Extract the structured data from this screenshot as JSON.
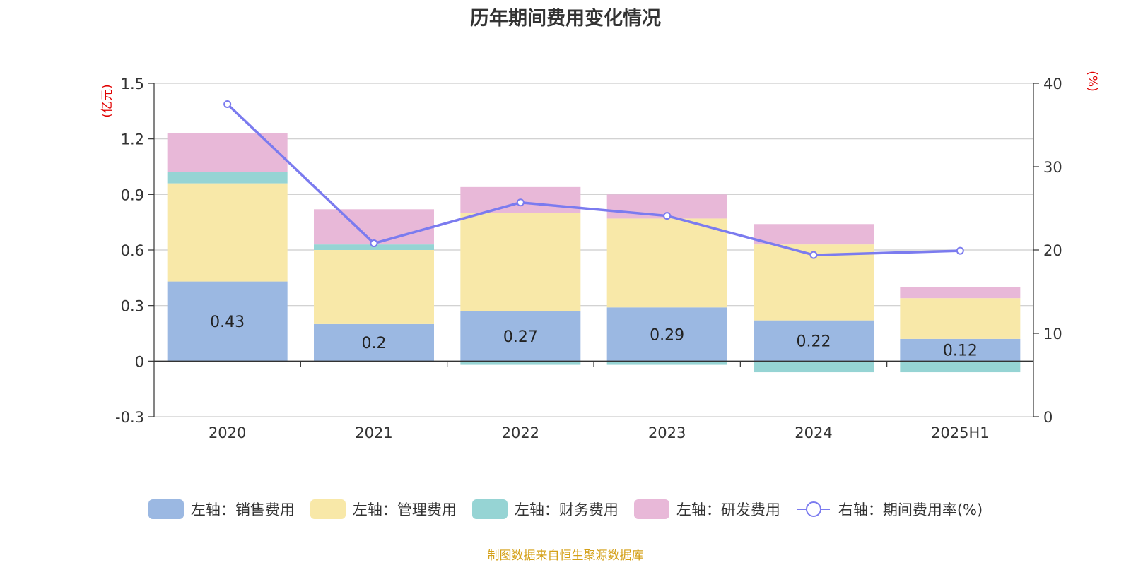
{
  "chart_data": {
    "type": "bar",
    "stacked": true,
    "title": "历年期间费用变化情况",
    "categories": [
      "2020",
      "2021",
      "2022",
      "2023",
      "2024",
      "2025H1"
    ],
    "y_left": {
      "label": "(亿元)",
      "range": [
        -0.3,
        1.5
      ],
      "ticks": [
        "1.5",
        "1.2",
        "0.9",
        "0.6",
        "0.3",
        "0",
        "-0.3"
      ]
    },
    "y_right": {
      "label": "(%)",
      "range": [
        0,
        40
      ],
      "ticks": [
        "40",
        "30",
        "20",
        "10",
        "0"
      ]
    },
    "series": [
      {
        "name": "左轴：销售费用",
        "type": "bar",
        "color": "#9bb8e2",
        "values": [
          0.43,
          0.2,
          0.27,
          0.29,
          0.22,
          0.12
        ],
        "labels": [
          "0.43",
          "0.2",
          "0.27",
          "0.29",
          "0.22",
          "0.12"
        ]
      },
      {
        "name": "左轴：管理费用",
        "type": "bar",
        "color": "#f8e8a8",
        "values": [
          0.53,
          0.4,
          0.53,
          0.48,
          0.41,
          0.22
        ]
      },
      {
        "name": "左轴：财务费用",
        "type": "bar",
        "color": "#96d4d4",
        "values": [
          0.06,
          0.03,
          -0.02,
          -0.02,
          -0.06,
          -0.06
        ]
      },
      {
        "name": "左轴：研发费用",
        "type": "bar",
        "color": "#e8b8d8",
        "values": [
          0.21,
          0.19,
          0.14,
          0.13,
          0.11,
          0.06
        ]
      },
      {
        "name": "右轴：期间费用率(%)",
        "type": "line",
        "axis": "right",
        "color": "#7b7bef",
        "values": [
          37.5,
          20.8,
          25.7,
          24.1,
          19.4,
          19.9
        ]
      }
    ],
    "grid": true,
    "legend_position": "bottom"
  },
  "source_note": "制图数据来自恒生聚源数据库"
}
